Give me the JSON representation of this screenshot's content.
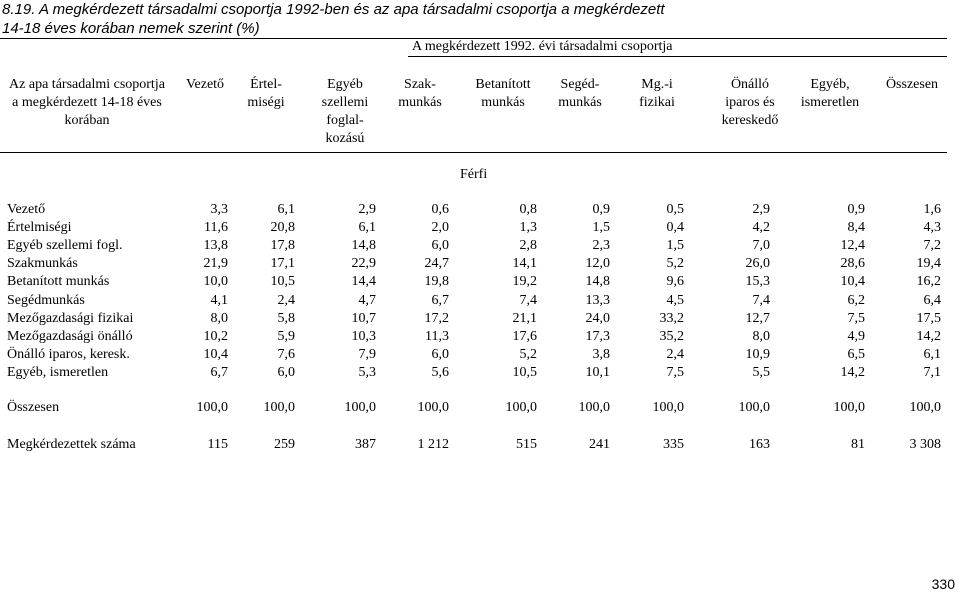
{
  "title_line1": "8.19. A megkérdezett társadalmi csoportja 1992-ben és az apa társadalmi csoportja a megkérdezett",
  "title_line2": "14-18 éves korában nemek szerint (%)",
  "column_group_title": "A megkérdezett 1992. évi társadalmi csoportja",
  "row_header": "Az apa társadalmi csoportja a megkérdezett 14-18 éves korában",
  "columns": [
    "Vezető",
    "Értel-\nmiségi",
    "Egyéb\nszellemi\nfoglal-\nkozású",
    "Szak-\nmunkás",
    "Betanított\nmunkás",
    "Segéd-\nmunkás",
    "Mg.-i\nfizikai",
    "Önálló\niparos és\nkereskedő",
    "Egyéb,\nismeretlen",
    "Összesen"
  ],
  "section_label": "Férfi",
  "rows": [
    {
      "label": "Vezető",
      "values": [
        "3,3",
        "6,1",
        "2,9",
        "0,6",
        "0,8",
        "0,9",
        "0,5",
        "2,9",
        "0,9",
        "1,6"
      ]
    },
    {
      "label": "Értelmiségi",
      "values": [
        "11,6",
        "20,8",
        "6,1",
        "2,0",
        "1,3",
        "1,5",
        "0,4",
        "4,2",
        "8,4",
        "4,3"
      ]
    },
    {
      "label": "Egyéb szellemi fogl.",
      "values": [
        "13,8",
        "17,8",
        "14,8",
        "6,0",
        "2,8",
        "2,3",
        "1,5",
        "7,0",
        "12,4",
        "7,2"
      ]
    },
    {
      "label": "Szakmunkás",
      "values": [
        "21,9",
        "17,1",
        "22,9",
        "24,7",
        "14,1",
        "12,0",
        "5,2",
        "26,0",
        "28,6",
        "19,4"
      ]
    },
    {
      "label": "Betanított munkás",
      "values": [
        "10,0",
        "10,5",
        "14,4",
        "19,8",
        "19,2",
        "14,8",
        "9,6",
        "15,3",
        "10,4",
        "16,2"
      ]
    },
    {
      "label": "Segédmunkás",
      "values": [
        "4,1",
        "2,4",
        "4,7",
        "6,7",
        "7,4",
        "13,3",
        "4,5",
        "7,4",
        "6,2",
        "6,4"
      ]
    },
    {
      "label": "Mezőgazdasági fizikai",
      "values": [
        "8,0",
        "5,8",
        "10,7",
        "17,2",
        "21,1",
        "24,0",
        "33,2",
        "12,7",
        "7,5",
        "17,5"
      ]
    },
    {
      "label": "Mezőgazdasági önálló",
      "values": [
        "10,2",
        "5,9",
        "10,3",
        "11,3",
        "17,6",
        "17,3",
        "35,2",
        "8,0",
        "4,9",
        "14,2"
      ]
    },
    {
      "label": "Önálló iparos, keresk.",
      "values": [
        "10,4",
        "7,6",
        "7,9",
        "6,0",
        "5,2",
        "3,8",
        "2,4",
        "10,9",
        "6,5",
        "6,1"
      ]
    },
    {
      "label": "Egyéb, ismeretlen",
      "values": [
        "6,7",
        "6,0",
        "5,3",
        "5,6",
        "10,5",
        "10,1",
        "7,5",
        "5,5",
        "14,2",
        "7,1"
      ]
    }
  ],
  "total_row": {
    "label": "Összesen",
    "values": [
      "100,0",
      "100,0",
      "100,0",
      "100,0",
      "100,0",
      "100,0",
      "100,0",
      "100,0",
      "100,0",
      "100,0"
    ]
  },
  "count_row": {
    "label": "Megkérdezettek száma",
    "values": [
      "115",
      "259",
      "387",
      "1 212",
      "515",
      "241",
      "335",
      "163",
      "81",
      "3 308"
    ]
  },
  "page_number": "330"
}
